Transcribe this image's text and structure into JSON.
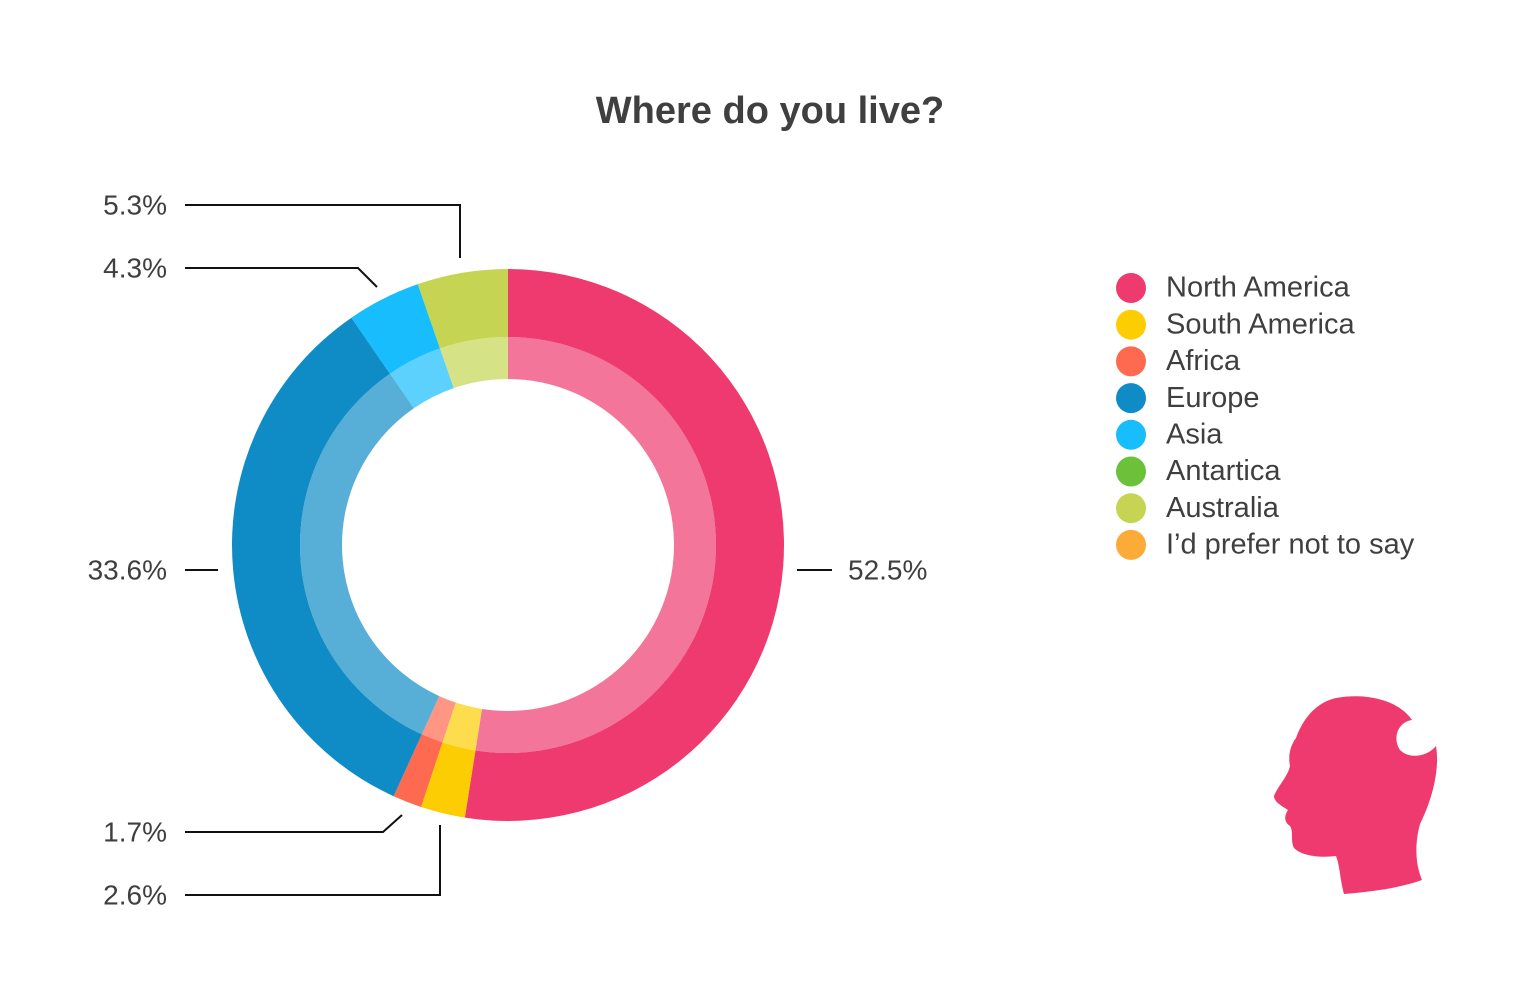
{
  "chart_data": {
    "type": "donut",
    "title": "Where do you live?",
    "categories": [
      "North America",
      "South America",
      "Africa",
      "Europe",
      "Asia",
      "Antartica",
      "Australia",
      "I’d prefer not to say"
    ],
    "values": [
      52.5,
      2.6,
      1.7,
      33.6,
      4.3,
      0,
      5.3,
      0
    ],
    "value_labels": [
      "52.5%",
      "2.6%",
      "1.7%",
      "33.6%",
      "4.3%",
      null,
      "5.3%",
      null
    ],
    "colors": [
      "#ee3a6f",
      "#fccd02",
      "#fd6a4f",
      "#0f8cc6",
      "#17bdfc",
      "#6cc13b",
      "#c5d553",
      "#fcab38"
    ],
    "legend": "right"
  }
}
